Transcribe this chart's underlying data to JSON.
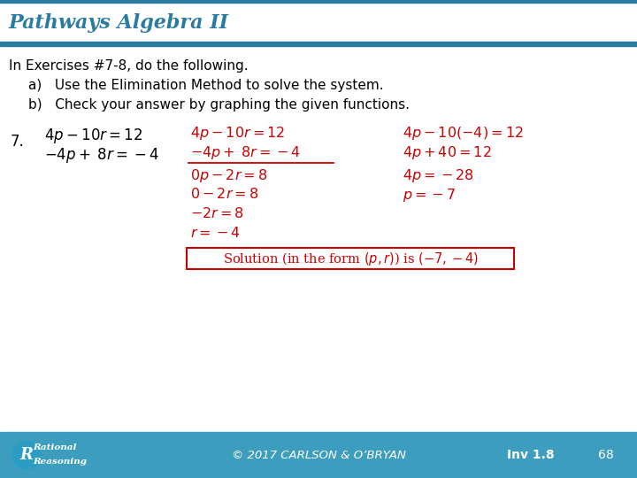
{
  "title": "Pathways Algebra II",
  "title_color": "#2B7BA0",
  "bg_color": "#FFFFFF",
  "header_bg": "#FFFFFF",
  "teal_bar_color": "#2B7BA0",
  "footer_bg": "#3D9DBE",
  "red_color": "#CC0000",
  "black_color": "#000000",
  "intro_line1": "In Exercises #7-8, do the following.",
  "intro_line2a": "a)   Use the Elimination Method to solve the system.",
  "intro_line2b": "b)   Check your answer by graphing the given functions.",
  "problem_num": "7.",
  "footer_text": "© 2017 CARLSON & O’BRYAN",
  "footer_right1": "Inv 1.8",
  "footer_right2": "68",
  "figw": 7.2,
  "figh": 5.4,
  "dpi": 100
}
